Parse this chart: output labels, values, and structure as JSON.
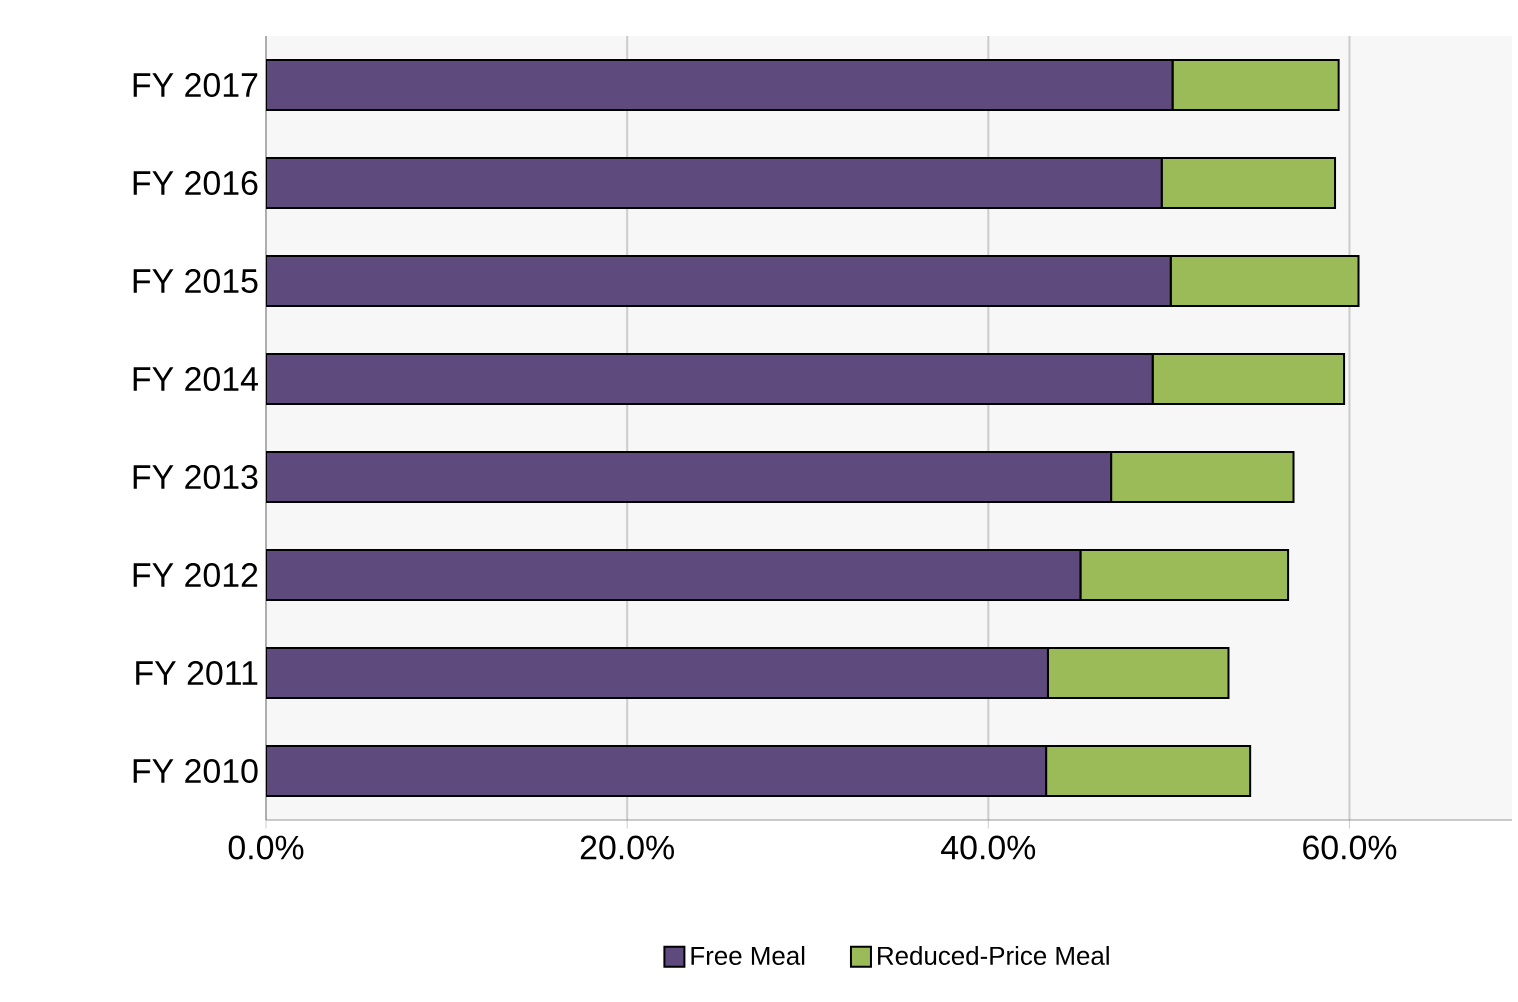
{
  "chart_data": {
    "type": "bar",
    "orientation": "horizontal",
    "stacked": true,
    "categories": [
      "FY 2017",
      "FY 2016",
      "FY 2015",
      "FY 2014",
      "FY 2013",
      "FY 2012",
      "FY 2011",
      "FY 2010"
    ],
    "series": [
      {
        "name": "Free Meal",
        "color": "#5f4a7d",
        "values": [
          50.2,
          49.6,
          50.1,
          49.1,
          46.8,
          45.1,
          43.3,
          43.2
        ]
      },
      {
        "name": "Reduced-Price Meal",
        "color": "#9bbb59",
        "values": [
          9.2,
          9.6,
          10.4,
          10.6,
          10.1,
          11.5,
          10.0,
          11.3
        ]
      }
    ],
    "xlim": [
      0,
      69
    ],
    "xticks": [
      {
        "value": 0,
        "label": "0.0%"
      },
      {
        "value": 20,
        "label": "20.0%"
      },
      {
        "value": 40,
        "label": "40.0%"
      },
      {
        "value": 60,
        "label": "60.0%"
      }
    ],
    "grid": "x",
    "legend": "bottom"
  }
}
